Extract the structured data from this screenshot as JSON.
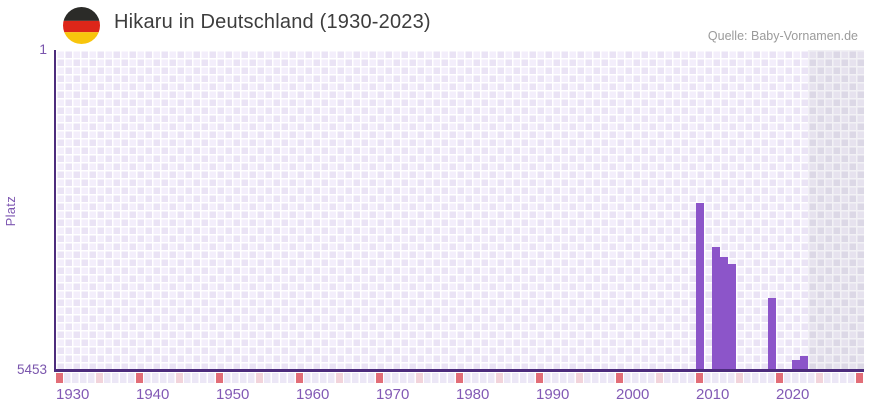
{
  "header": {
    "title": "Hikaru in Deutschland (1930-2023)",
    "source": "Quelle: Baby-Vornamen.de",
    "flag": "german-flag-circle"
  },
  "axes": {
    "y_title": "Platz",
    "y_top_label": "1",
    "y_bottom_label": "5453"
  },
  "colors": {
    "bar": "#8c55c9",
    "axis_line": "#4d2c7d",
    "axis_label": "#8259b5",
    "tick_decade_red": "#e26d77",
    "tick_half_decade_pink": "#f2d3da",
    "title_text": "#3d3d3d",
    "source_text": "#9b9b9b",
    "flag_black": "#2b2b28",
    "flag_red": "#dd2619",
    "flag_gold": "#f8c50c"
  },
  "chart_data": {
    "type": "bar",
    "title": "Hikaru in Deutschland (1930-2023)",
    "ylabel": "Platz",
    "xlabel": "",
    "y_axis": {
      "min": 1,
      "max": 5453,
      "inverted": true,
      "tick_labels": [
        "1",
        "5453"
      ]
    },
    "x_axis": {
      "start_year": 1930,
      "end_year": 2030,
      "decade_labels": [
        "1930",
        "1940",
        "1950",
        "1960",
        "1970",
        "1980",
        "1990",
        "2000",
        "2010",
        "2020"
      ],
      "decade_tick_years": [
        1930,
        1940,
        1950,
        1960,
        1970,
        1980,
        1990,
        2000,
        2010,
        2020,
        2030
      ],
      "half_decade_tick_years": [
        1935,
        1945,
        1955,
        1965,
        1975,
        1985,
        1995,
        2005,
        2015,
        2025
      ]
    },
    "series": [
      {
        "name": "Platz",
        "points": [
          {
            "year": 2010,
            "rank": 2600
          },
          {
            "year": 2012,
            "rank": 3360
          },
          {
            "year": 2013,
            "rank": 3530
          },
          {
            "year": 2014,
            "rank": 3640
          },
          {
            "year": 2019,
            "rank": 4220
          },
          {
            "year": 2022,
            "rank": 5280
          },
          {
            "year": 2023,
            "rank": 5210
          }
        ]
      }
    ],
    "no_data_shaded_region": {
      "from_year": 2024,
      "to_year": 2030
    },
    "legend": "none",
    "grid": true
  }
}
